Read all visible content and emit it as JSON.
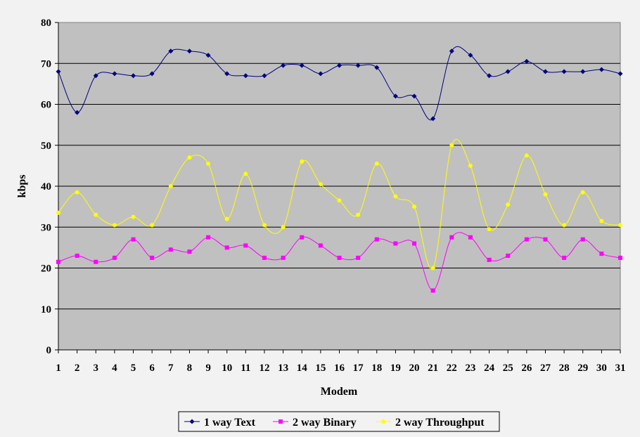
{
  "chart_data": {
    "type": "line",
    "title": "",
    "xlabel": "Modem",
    "ylabel": "kbps",
    "ylim": [
      0,
      80
    ],
    "yticks": [
      0,
      10,
      20,
      30,
      40,
      50,
      60,
      70,
      80
    ],
    "categories": [
      "1",
      "2",
      "3",
      "4",
      "5",
      "6",
      "7",
      "8",
      "9",
      "10",
      "11",
      "12",
      "13",
      "14",
      "15",
      "16",
      "17",
      "18",
      "19",
      "20",
      "21",
      "22",
      "23",
      "24",
      "25",
      "26",
      "27",
      "28",
      "29",
      "30",
      "31"
    ],
    "grid": "horizontal",
    "legend_position": "bottom",
    "plot_background": "#c0c0c0",
    "series": [
      {
        "name": "1 way Text",
        "color": "#000080",
        "marker": "diamond",
        "values": [
          68,
          58,
          67,
          67.5,
          67,
          67.5,
          73,
          73,
          72,
          67.5,
          67,
          67,
          69.5,
          69.5,
          67.5,
          69.5,
          69.5,
          69,
          62,
          62,
          56.5,
          73,
          72,
          67,
          68,
          70.5,
          68,
          68,
          68,
          68.5,
          67.5
        ]
      },
      {
        "name": "2 way Binary",
        "color": "#ff00ff",
        "marker": "square",
        "values": [
          21.5,
          23,
          21.5,
          22.5,
          27,
          22.5,
          24.5,
          24,
          27.5,
          25,
          25.5,
          22.5,
          22.5,
          27.5,
          25.5,
          22.5,
          22.5,
          27,
          26,
          26,
          14.5,
          27.5,
          27.5,
          22,
          23,
          27,
          27,
          22.5,
          27,
          23.5,
          22.5
        ]
      },
      {
        "name": "2 way Throughput",
        "color": "#ffff00",
        "marker": "circle",
        "values": [
          33.5,
          38.5,
          33,
          30.5,
          32.5,
          30.5,
          40,
          47,
          45.5,
          32,
          43,
          30.5,
          30,
          46,
          40.5,
          36.5,
          33,
          45.5,
          37.5,
          35,
          20,
          50,
          45,
          29.5,
          35.5,
          47.5,
          38,
          30.5,
          38.5,
          31.5,
          30.5
        ]
      }
    ]
  }
}
